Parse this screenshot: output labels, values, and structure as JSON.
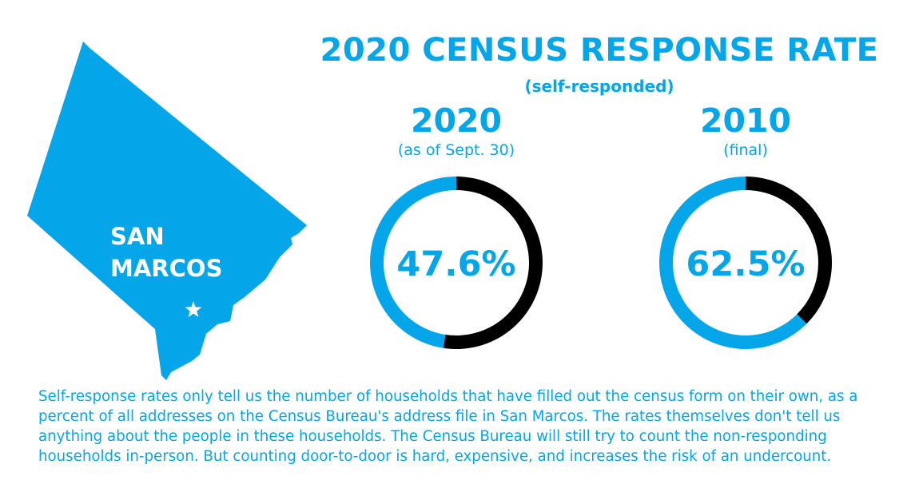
{
  "map": {
    "label_line1": "SAN",
    "label_line2": "MARCOS",
    "fill": "#04a6e9",
    "marker": "star-icon"
  },
  "chart_data": {
    "type": "pie",
    "title": "2020 CENSUS RESPONSE RATE",
    "subtitle": "(self-responded)",
    "series": [
      {
        "name": "2020",
        "note": "(as of Sept. 30)",
        "value": 47.6,
        "label": "47.6%"
      },
      {
        "name": "2010",
        "note": "(final)",
        "value": 62.5,
        "label": "62.5%"
      }
    ],
    "colors": {
      "responded": "#04a6e9",
      "remaining": "#000000"
    }
  },
  "footnote": "Self-response rates only tell us the number of households that have filled out the census form on their own, as a percent of all addresses on the Census Bureau's address file in San Marcos. The rates themselves don't tell us anything about the people in these households. The Census Bureau will still try to count the non-responding households in-person. But counting door-to-door is hard, expensive, and increases the risk of an undercount."
}
